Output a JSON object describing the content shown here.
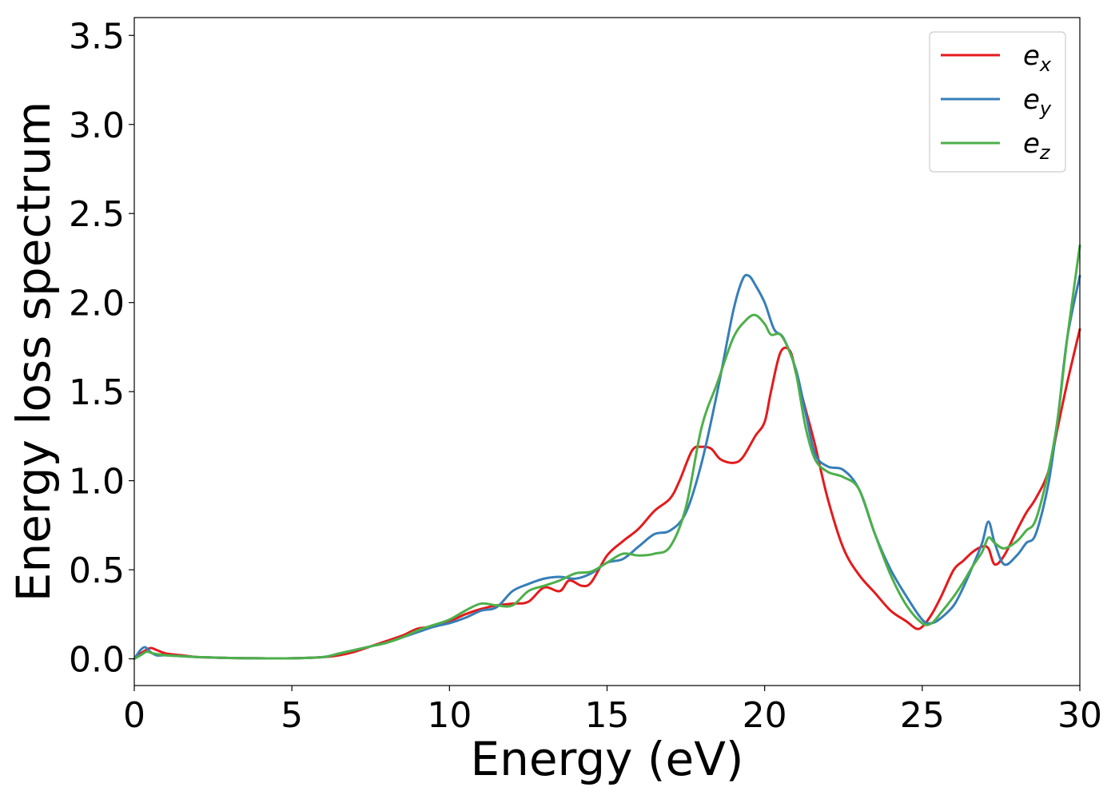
{
  "chart_data": {
    "type": "line",
    "title": "",
    "xlabel": "Energy (eV)",
    "ylabel": "Energy loss spectrum",
    "xlim": [
      0,
      30
    ],
    "ylim": [
      -0.15,
      3.6
    ],
    "xticks": [
      0,
      5,
      10,
      15,
      20,
      25,
      30
    ],
    "yticks": [
      0.0,
      0.5,
      1.0,
      1.5,
      2.0,
      2.5,
      3.0,
      3.5
    ],
    "xtick_labels": [
      "0",
      "5",
      "10",
      "15",
      "20",
      "25",
      "30"
    ],
    "ytick_labels": [
      "0.0",
      "0.5",
      "1.0",
      "1.5",
      "2.0",
      "2.5",
      "3.0",
      "3.5"
    ],
    "grid": false,
    "legend_position": "top-right",
    "series": [
      {
        "name": "e_x",
        "legend_base": "e",
        "legend_sub": "x",
        "color": "#e41a1c",
        "x": [
          0,
          0.2,
          0.5,
          0.7,
          1.0,
          1.5,
          2,
          3,
          4,
          5,
          6,
          6.5,
          7,
          7.5,
          8,
          8.5,
          9,
          9.5,
          10,
          10.5,
          11,
          11.5,
          12,
          12.5,
          13,
          13.5,
          13.8,
          14.2,
          14.5,
          15,
          15.5,
          16,
          16.5,
          17,
          17.3,
          17.7,
          18,
          18.3,
          18.6,
          19,
          19.3,
          19.7,
          20,
          20.2,
          20.5,
          20.8,
          21,
          21.3,
          21.6,
          22,
          22.5,
          23,
          23.5,
          24,
          24.5,
          24.8,
          25,
          25.3,
          25.6,
          26,
          26.3,
          26.6,
          26.9,
          27.1,
          27.3,
          27.6,
          28,
          28.3,
          28.6,
          29,
          29.3,
          29.6,
          30
        ],
        "y": [
          0.0,
          0.03,
          0.06,
          0.05,
          0.03,
          0.02,
          0.01,
          0.005,
          0.003,
          0.003,
          0.01,
          0.02,
          0.04,
          0.07,
          0.1,
          0.13,
          0.17,
          0.18,
          0.21,
          0.25,
          0.28,
          0.3,
          0.31,
          0.32,
          0.4,
          0.38,
          0.44,
          0.41,
          0.43,
          0.58,
          0.66,
          0.73,
          0.83,
          0.9,
          1.0,
          1.17,
          1.19,
          1.18,
          1.12,
          1.1,
          1.13,
          1.25,
          1.33,
          1.5,
          1.72,
          1.73,
          1.6,
          1.4,
          1.2,
          0.9,
          0.62,
          0.47,
          0.37,
          0.27,
          0.21,
          0.17,
          0.18,
          0.25,
          0.35,
          0.5,
          0.55,
          0.6,
          0.63,
          0.62,
          0.53,
          0.58,
          0.72,
          0.82,
          0.9,
          1.05,
          1.3,
          1.55,
          1.85
        ]
      },
      {
        "name": "e_y",
        "legend_base": "e",
        "legend_sub": "y",
        "color": "#377eb8",
        "x": [
          0,
          0.2,
          0.35,
          0.5,
          0.7,
          1.0,
          1.5,
          2,
          3,
          4,
          5,
          6,
          6.5,
          7,
          7.5,
          8,
          8.5,
          9,
          9.5,
          10,
          10.5,
          11,
          11.5,
          12,
          12.5,
          13,
          13.5,
          14,
          14.5,
          15,
          15.5,
          16,
          16.5,
          17,
          17.5,
          18,
          18.5,
          19,
          19.3,
          19.5,
          19.7,
          20,
          20.3,
          20.6,
          21,
          21.3,
          21.6,
          22,
          22.5,
          23,
          23.5,
          24,
          24.5,
          25,
          25.3,
          25.6,
          26,
          26.3,
          26.6,
          26.9,
          27.1,
          27.3,
          27.6,
          28,
          28.3,
          28.6,
          29,
          29.3,
          29.6,
          30
        ],
        "y": [
          0.0,
          0.05,
          0.065,
          0.04,
          0.02,
          0.02,
          0.015,
          0.01,
          0.005,
          0.003,
          0.003,
          0.01,
          0.03,
          0.05,
          0.07,
          0.09,
          0.12,
          0.15,
          0.18,
          0.2,
          0.23,
          0.27,
          0.29,
          0.38,
          0.42,
          0.45,
          0.46,
          0.45,
          0.48,
          0.54,
          0.56,
          0.63,
          0.7,
          0.72,
          0.82,
          1.1,
          1.5,
          1.95,
          2.13,
          2.15,
          2.1,
          2.0,
          1.85,
          1.8,
          1.62,
          1.38,
          1.15,
          1.08,
          1.06,
          0.95,
          0.7,
          0.5,
          0.35,
          0.22,
          0.2,
          0.23,
          0.3,
          0.4,
          0.52,
          0.65,
          0.77,
          0.65,
          0.53,
          0.58,
          0.65,
          0.7,
          0.98,
          1.35,
          1.8,
          2.15
        ]
      },
      {
        "name": "e_z",
        "legend_base": "e",
        "legend_sub": "z",
        "color": "#4daf4a",
        "x": [
          0,
          0.2,
          0.4,
          0.6,
          1.0,
          1.5,
          2,
          3,
          4,
          5,
          6,
          6.5,
          7,
          7.5,
          8,
          8.5,
          9,
          9.5,
          10,
          10.5,
          11,
          11.5,
          12,
          12.5,
          13,
          13.5,
          14,
          14.5,
          15,
          15.5,
          16,
          16.5,
          17,
          17.5,
          18,
          18.5,
          19,
          19.4,
          19.7,
          20,
          20.2,
          20.5,
          20.8,
          21,
          21.3,
          21.6,
          22,
          22.5,
          23,
          23.5,
          24,
          24.5,
          25,
          25.3,
          25.6,
          26,
          26.3,
          26.6,
          26.9,
          27.1,
          27.3,
          27.6,
          28,
          28.3,
          28.6,
          29,
          29.3,
          29.6,
          30
        ],
        "y": [
          0.0,
          0.02,
          0.04,
          0.03,
          0.02,
          0.015,
          0.01,
          0.005,
          0.003,
          0.003,
          0.01,
          0.03,
          0.05,
          0.07,
          0.09,
          0.12,
          0.16,
          0.19,
          0.22,
          0.27,
          0.31,
          0.3,
          0.3,
          0.38,
          0.41,
          0.44,
          0.48,
          0.49,
          0.54,
          0.59,
          0.58,
          0.59,
          0.63,
          0.85,
          1.3,
          1.55,
          1.8,
          1.9,
          1.93,
          1.88,
          1.82,
          1.82,
          1.72,
          1.6,
          1.3,
          1.12,
          1.05,
          1.02,
          0.95,
          0.7,
          0.47,
          0.3,
          0.2,
          0.2,
          0.26,
          0.35,
          0.43,
          0.52,
          0.6,
          0.68,
          0.65,
          0.62,
          0.66,
          0.72,
          0.78,
          1.05,
          1.35,
          1.8,
          2.32
        ]
      }
    ]
  }
}
